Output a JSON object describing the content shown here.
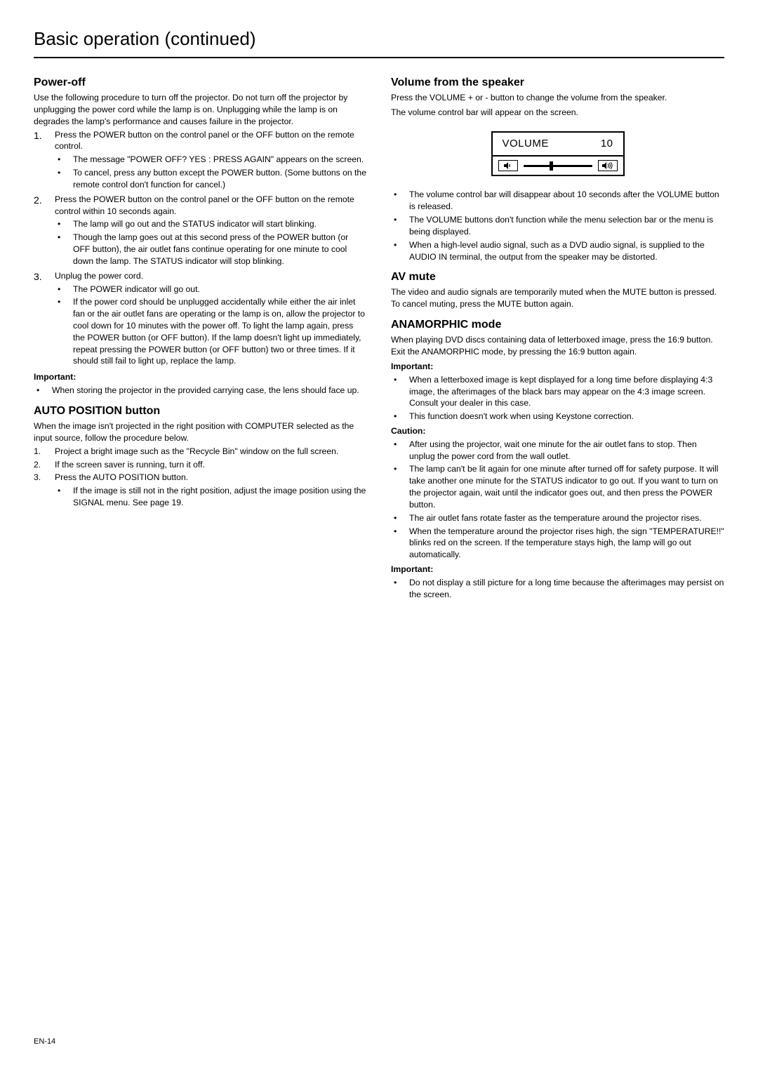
{
  "pageTitle": "Basic operation (continued)",
  "footer": "EN-14",
  "left": {
    "powerOff": {
      "heading": "Power-off",
      "intro": "Use the following procedure to turn off the projector. Do not turn off the projector by unplugging the power cord while the lamp is on. Unplugging while the lamp is on degrades the lamp's performance and causes failure in the projector.",
      "steps": [
        {
          "n": "1.",
          "text": "Press the POWER button on the control panel or the OFF button on the remote control.",
          "sub": [
            "The message \"POWER OFF? YES : PRESS AGAIN\" appears on the screen.",
            "To cancel, press any button except the POWER button. (Some buttons on the remote control don't function for cancel.)"
          ]
        },
        {
          "n": "2.",
          "text": "Press the POWER button on the control panel or the OFF button on the remote control within 10 seconds again.",
          "sub": [
            "The lamp will go out and the STATUS indicator will start blinking.",
            "Though the lamp goes out at this second press of the POWER button (or OFF button), the air outlet fans continue operating for one minute to cool down the lamp. The STATUS indicator will stop blinking."
          ]
        },
        {
          "n": "3.",
          "text": "Unplug the power cord.",
          "sub": [
            "The POWER indicator will go out.",
            "If the power cord should be unplugged accidentally while either the air inlet fan or the air outlet fans are operating or the lamp is on, allow the projector to cool down for 10 minutes with the power off. To light the lamp again, press the POWER button (or OFF button). If the lamp doesn't light up immediately, repeat pressing the POWER button (or OFF button) two or three times. If it should still fail to light up, replace the lamp."
          ]
        }
      ],
      "importantLabel": "Important:",
      "importantItems": [
        "When storing the projector in the provided carrying case, the lens should face up."
      ]
    },
    "autoPos": {
      "heading": "AUTO POSITION button",
      "intro": "When the image isn't projected in the right position with COMPUTER selected as the input source, follow the procedure below.",
      "steps": [
        {
          "n": "1.",
          "text": "Project a bright image such as the \"Recycle Bin\" window on the full screen."
        },
        {
          "n": "2.",
          "text": "If the screen saver is running, turn it off."
        },
        {
          "n": "3.",
          "text": "Press the AUTO POSITION button.",
          "sub": [
            "If the image is still not in the right position, adjust the image position using the SIGNAL menu. See page 19."
          ]
        }
      ]
    }
  },
  "right": {
    "volume": {
      "heading": "Volume from the speaker",
      "intro1": "Press the VOLUME + or - button to change the volume from the speaker.",
      "intro2": "The volume control bar will appear on the screen.",
      "box": {
        "label": "VOLUME",
        "value": "10",
        "sliderPercent": 38
      },
      "notes": [
        "The volume control bar will disappear about 10 seconds after the VOLUME button is released.",
        "The VOLUME buttons don't function while the menu selection bar or the menu is being displayed.",
        "When a high-level audio signal, such as a DVD audio signal, is supplied to the AUDIO IN terminal, the output from the speaker may be distorted."
      ]
    },
    "avmute": {
      "heading": "AV mute",
      "text": "The video and audio signals are temporarily muted when the MUTE button is pressed. To cancel muting, press the MUTE button again."
    },
    "anamorphic": {
      "heading": "ANAMORPHIC mode",
      "intro": "When playing DVD discs containing data of letterboxed image, press the 16:9 button. Exit the ANAMORPHIC mode, by pressing the 16:9 button again.",
      "importantLabel": "Important:",
      "importantItems": [
        "When a letterboxed image is kept displayed for a long time before displaying 4:3 image, the afterimages of the black bars may appear on the 4:3 image screen. Consult your dealer in this case.",
        "This function doesn't work when using Keystone correction."
      ],
      "cautionLabel": "Caution:",
      "cautionItems": [
        "After using the projector, wait one minute for the air outlet fans to stop. Then unplug the power cord from the wall outlet.",
        "The lamp can't be lit again for one minute after turned off for safety purpose. It will take another one minute for the STATUS indicator to go out. If you want to turn on the projector again, wait until the indicator goes out, and then press the POWER button.",
        "The air outlet fans rotate faster as the temperature around the projector rises.",
        "When the temperature around the projector rises high, the sign \"TEMPERATURE!!\" blinks red on the screen. If the temperature stays high, the lamp will go out automatically."
      ],
      "important2Label": "Important:",
      "important2Items": [
        "Do not display a still picture for a long time because the afterimages may persist on the screen."
      ]
    }
  }
}
